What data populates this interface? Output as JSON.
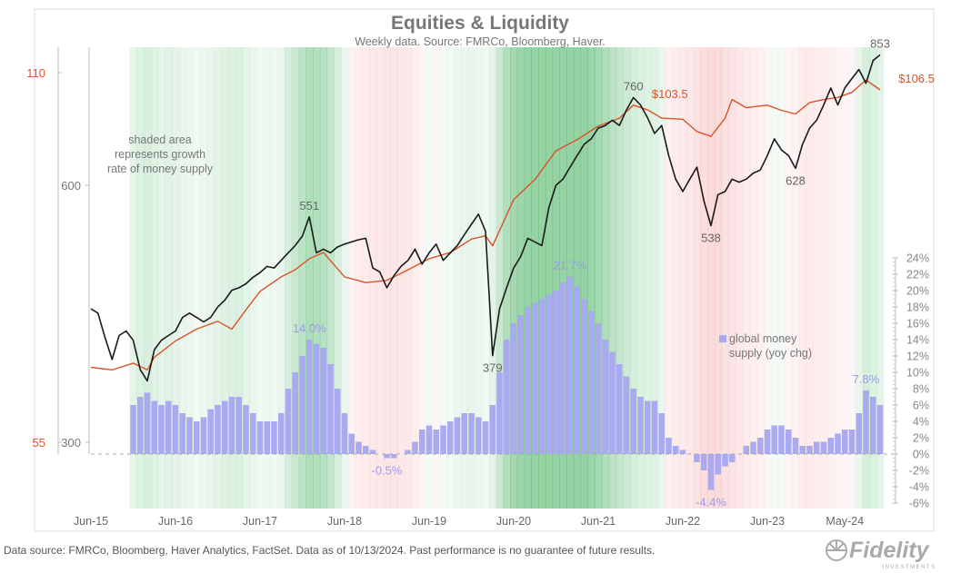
{
  "chart_data": {
    "type": "line",
    "title": "Equities & Liquidity",
    "subtitle": "Weekly data.  Source: FMRCo, Bloomberg, Haver.",
    "x_ticks": [
      {
        "date": "2015-06",
        "label": "Jun-15"
      },
      {
        "date": "2016-06",
        "label": "Jun-16"
      },
      {
        "date": "2017-06",
        "label": "Jun-17"
      },
      {
        "date": "2018-06",
        "label": "Jun-18"
      },
      {
        "date": "2019-06",
        "label": "Jun-19"
      },
      {
        "date": "2020-06",
        "label": "Jun-20"
      },
      {
        "date": "2021-06",
        "label": "Jun-21"
      },
      {
        "date": "2022-06",
        "label": "Jun-22"
      },
      {
        "date": "2023-06",
        "label": "Jun-23"
      },
      {
        "date": "2024-05",
        "label": "May-24"
      }
    ],
    "axes": {
      "left_outer": {
        "scale": "log",
        "color": "#d9542b",
        "ticks": [
          {
            "value": 110,
            "label": "110"
          },
          {
            "value": 55,
            "label": "55"
          }
        ]
      },
      "left_inner": {
        "scale": "log",
        "color": "#777777",
        "ticks": [
          {
            "value": 600,
            "label": "600"
          },
          {
            "value": 300,
            "label": "300"
          }
        ]
      },
      "right": {
        "scale": "linear",
        "range": [
          -6,
          24
        ],
        "color": "#888888",
        "ticks": [
          "24%",
          "22%",
          "20%",
          "18%",
          "16%",
          "14%",
          "12%",
          "10%",
          "8%",
          "6%",
          "4%",
          "2%",
          "0%",
          "-2%",
          "-4%",
          "-6%"
        ],
        "tick_values": [
          24,
          22,
          20,
          18,
          16,
          14,
          12,
          10,
          8,
          6,
          4,
          2,
          0,
          -2,
          -4,
          -6
        ]
      }
    },
    "series": [
      {
        "key": "equities",
        "color": "#1a1a1a",
        "axis": "left_inner",
        "points": [
          [
            "2015-06",
            430
          ],
          [
            "2015-07",
            425
          ],
          [
            "2015-08",
            398
          ],
          [
            "2015-09",
            375
          ],
          [
            "2015-10",
            400
          ],
          [
            "2015-11",
            405
          ],
          [
            "2015-12",
            395
          ],
          [
            "2016-01",
            365
          ],
          [
            "2016-02",
            354
          ],
          [
            "2016-03",
            385
          ],
          [
            "2016-04",
            395
          ],
          [
            "2016-05",
            400
          ],
          [
            "2016-06",
            405
          ],
          [
            "2016-07",
            420
          ],
          [
            "2016-08",
            425
          ],
          [
            "2016-09",
            420
          ],
          [
            "2016-10",
            415
          ],
          [
            "2016-11",
            420
          ],
          [
            "2016-12",
            432
          ],
          [
            "2017-01",
            440
          ],
          [
            "2017-02",
            452
          ],
          [
            "2017-03",
            455
          ],
          [
            "2017-04",
            460
          ],
          [
            "2017-05",
            468
          ],
          [
            "2017-06",
            474
          ],
          [
            "2017-07",
            482
          ],
          [
            "2017-08",
            480
          ],
          [
            "2017-09",
            490
          ],
          [
            "2017-10",
            500
          ],
          [
            "2017-11",
            510
          ],
          [
            "2017-12",
            523
          ],
          [
            "2018-01",
            551
          ],
          [
            "2018-02",
            500
          ],
          [
            "2018-03",
            505
          ],
          [
            "2018-04",
            500
          ],
          [
            "2018-05",
            508
          ],
          [
            "2018-06",
            512
          ],
          [
            "2018-07",
            515
          ],
          [
            "2018-08",
            518
          ],
          [
            "2018-09",
            520
          ],
          [
            "2018-10",
            480
          ],
          [
            "2018-11",
            475
          ],
          [
            "2018-12",
            455
          ],
          [
            "2019-01",
            470
          ],
          [
            "2019-02",
            482
          ],
          [
            "2019-03",
            490
          ],
          [
            "2019-04",
            505
          ],
          [
            "2019-05",
            485
          ],
          [
            "2019-06",
            500
          ],
          [
            "2019-07",
            512
          ],
          [
            "2019-08",
            490
          ],
          [
            "2019-09",
            500
          ],
          [
            "2019-10",
            510
          ],
          [
            "2019-11",
            525
          ],
          [
            "2019-12",
            540
          ],
          [
            "2020-01",
            555
          ],
          [
            "2020-02",
            530
          ],
          [
            "2020-03",
            379
          ],
          [
            "2020-04",
            430
          ],
          [
            "2020-05",
            455
          ],
          [
            "2020-06",
            480
          ],
          [
            "2020-07",
            495
          ],
          [
            "2020-08",
            520
          ],
          [
            "2020-09",
            515
          ],
          [
            "2020-10",
            510
          ],
          [
            "2020-11",
            565
          ],
          [
            "2020-12",
            600
          ],
          [
            "2021-01",
            610
          ],
          [
            "2021-02",
            630
          ],
          [
            "2021-03",
            650
          ],
          [
            "2021-04",
            670
          ],
          [
            "2021-05",
            680
          ],
          [
            "2021-06",
            700
          ],
          [
            "2021-07",
            705
          ],
          [
            "2021-08",
            715
          ],
          [
            "2021-09",
            705
          ],
          [
            "2021-10",
            735
          ],
          [
            "2021-11",
            760
          ],
          [
            "2021-12",
            745
          ],
          [
            "2022-01",
            720
          ],
          [
            "2022-02",
            690
          ],
          [
            "2022-03",
            705
          ],
          [
            "2022-04",
            650
          ],
          [
            "2022-05",
            610
          ],
          [
            "2022-06",
            590
          ],
          [
            "2022-07",
            610
          ],
          [
            "2022-08",
            630
          ],
          [
            "2022-09",
            575
          ],
          [
            "2022-10",
            538
          ],
          [
            "2022-11",
            585
          ],
          [
            "2022-12",
            590
          ],
          [
            "2023-01",
            610
          ],
          [
            "2023-02",
            605
          ],
          [
            "2023-03",
            610
          ],
          [
            "2023-04",
            620
          ],
          [
            "2023-05",
            625
          ],
          [
            "2023-06",
            650
          ],
          [
            "2023-07",
            680
          ],
          [
            "2023-08",
            660
          ],
          [
            "2023-09",
            650
          ],
          [
            "2023-10",
            628
          ],
          [
            "2023-11",
            670
          ],
          [
            "2023-12",
            700
          ],
          [
            "2024-01",
            715
          ],
          [
            "2024-02",
            745
          ],
          [
            "2024-03",
            780
          ],
          [
            "2024-04",
            745
          ],
          [
            "2024-05",
            780
          ],
          [
            "2024-06",
            800
          ],
          [
            "2024-07",
            820
          ],
          [
            "2024-08",
            790
          ],
          [
            "2024-09",
            840
          ],
          [
            "2024-10",
            853
          ]
        ]
      },
      {
        "key": "liquidity",
        "color": "#d9542b",
        "axis": "left_outer",
        "points": [
          [
            "2015-06",
            63.3
          ],
          [
            "2015-09",
            63.0
          ],
          [
            "2015-12",
            63.8
          ],
          [
            "2016-02",
            63.0
          ],
          [
            "2016-03",
            64.5
          ],
          [
            "2016-06",
            66.5
          ],
          [
            "2016-09",
            68
          ],
          [
            "2016-12",
            69
          ],
          [
            "2017-02",
            68
          ],
          [
            "2017-04",
            70.5
          ],
          [
            "2017-06",
            73
          ],
          [
            "2017-09",
            75
          ],
          [
            "2017-11",
            76
          ],
          [
            "2018-01",
            77.6
          ],
          [
            "2018-03",
            78.5
          ],
          [
            "2018-06",
            75
          ],
          [
            "2018-09",
            74.2
          ],
          [
            "2018-12",
            74.5
          ],
          [
            "2019-03",
            76
          ],
          [
            "2019-06",
            77.6
          ],
          [
            "2019-09",
            78.5
          ],
          [
            "2019-12",
            80.5
          ],
          [
            "2020-02",
            81
          ],
          [
            "2020-03",
            79.5
          ],
          [
            "2020-06",
            86.7
          ],
          [
            "2020-09",
            90
          ],
          [
            "2020-12",
            95
          ],
          [
            "2021-03",
            97
          ],
          [
            "2021-06",
            99.5
          ],
          [
            "2021-09",
            101
          ],
          [
            "2021-11",
            103.5
          ],
          [
            "2022-01",
            102.6
          ],
          [
            "2022-03",
            101
          ],
          [
            "2022-06",
            100.8
          ],
          [
            "2022-08",
            98.5
          ],
          [
            "2022-10",
            97.6
          ],
          [
            "2022-12",
            101
          ],
          [
            "2023-01",
            104.6
          ],
          [
            "2023-03",
            103
          ],
          [
            "2023-06",
            103.5
          ],
          [
            "2023-08",
            102.5
          ],
          [
            "2023-10",
            101.8
          ],
          [
            "2023-12",
            104
          ],
          [
            "2024-02",
            104.6
          ],
          [
            "2024-04",
            105
          ],
          [
            "2024-06",
            106
          ],
          [
            "2024-08",
            108.5
          ],
          [
            "2024-10",
            106.5
          ]
        ]
      }
    ],
    "bars": {
      "key": "money_supply_growth",
      "color": "#aaaaf0",
      "axis": "right",
      "unit": "%",
      "start": "2015-12",
      "values": [
        6,
        7,
        7.5,
        6.5,
        6,
        6.5,
        6,
        5,
        4.5,
        4,
        4.5,
        5.5,
        6,
        6.5,
        7,
        7,
        6,
        5,
        4,
        4,
        4,
        5,
        8,
        10,
        12,
        14,
        13.5,
        13,
        11,
        8,
        5,
        2.5,
        1.5,
        1,
        0.5,
        0,
        -0.5,
        -0.5,
        0,
        0.5,
        1.5,
        3,
        3.5,
        3,
        3.5,
        4,
        4.5,
        5,
        5,
        4.5,
        4,
        6,
        10,
        14,
        16,
        17,
        18,
        18.5,
        19,
        19.5,
        20,
        21,
        21.7,
        20.5,
        19,
        17.5,
        16,
        14,
        12.5,
        11,
        9.5,
        8,
        7,
        6.5,
        6.5,
        5,
        2,
        1,
        0.5,
        0,
        -1,
        -2,
        -4.4,
        -2.5,
        -1.5,
        -1,
        0,
        1,
        1.5,
        2,
        3,
        3.5,
        3.5,
        3,
        2,
        1,
        1,
        1.5,
        1.5,
        2,
        2.5,
        3,
        3,
        5,
        7.8,
        7,
        6
      ]
    },
    "shading": {
      "basis": "growth rate of money supply",
      "high_color": "#3fae5a",
      "low_color": "#f08a8a"
    },
    "annotations": [
      {
        "date": "2024-10",
        "axis": "left_inner",
        "value": 853,
        "label": "853",
        "color": "#666666"
      },
      {
        "date": "2021-11",
        "axis": "left_inner",
        "value": 760,
        "label": "760",
        "color": "#666666"
      },
      {
        "date": "2018-01",
        "axis": "left_inner",
        "value": 551,
        "label": "551",
        "color": "#666666"
      },
      {
        "date": "2020-03",
        "axis": "left_inner",
        "value": 379,
        "label": "379",
        "color": "#666666",
        "below": true
      },
      {
        "date": "2022-10",
        "axis": "left_inner",
        "value": 538,
        "label": "538",
        "color": "#666666",
        "below": true
      },
      {
        "date": "2023-10",
        "axis": "left_inner",
        "value": 628,
        "label": "628",
        "color": "#666666",
        "below": true
      },
      {
        "date": "2021-11",
        "axis": "left_outer",
        "value": 103.5,
        "label": "$103.5",
        "color": "#d9542b",
        "dx": 40
      },
      {
        "date": "2024-10",
        "axis": "left_outer",
        "value": 106.5,
        "label": "$106.5",
        "color": "#d9542b",
        "dx": 40
      },
      {
        "date": "2018-01",
        "axis": "right",
        "value": 14.0,
        "label": "14.0%",
        "color": "#9a9ae8"
      },
      {
        "date": "2021-02",
        "axis": "right",
        "value": 21.7,
        "label": "21.7%",
        "color": "#9a9ae8"
      },
      {
        "date": "2018-12",
        "axis": "right",
        "value": -0.5,
        "label": "-0.5%",
        "color": "#9a9ae8",
        "below": true
      },
      {
        "date": "2022-10",
        "axis": "right",
        "value": -4.4,
        "label": "-4.4%",
        "color": "#9a9ae8",
        "below": true
      },
      {
        "date": "2024-08",
        "axis": "right",
        "value": 7.8,
        "label": "7.8%",
        "color": "#9a9ae8"
      }
    ],
    "notes": {
      "shading_note": [
        "shaded area",
        "represents growth",
        "rate of money supply"
      ],
      "legend_label": [
        "global money",
        "supply (yoy chg)"
      ]
    }
  },
  "footer": {
    "source": "Data source: FMRCo, Bloomberg, Haver Analytics, FactSet. Data as of 10/13/2024. Past performance is no guarantee of future results.",
    "logo": "Fidelity",
    "logo_sub": "INVESTMENTS"
  }
}
